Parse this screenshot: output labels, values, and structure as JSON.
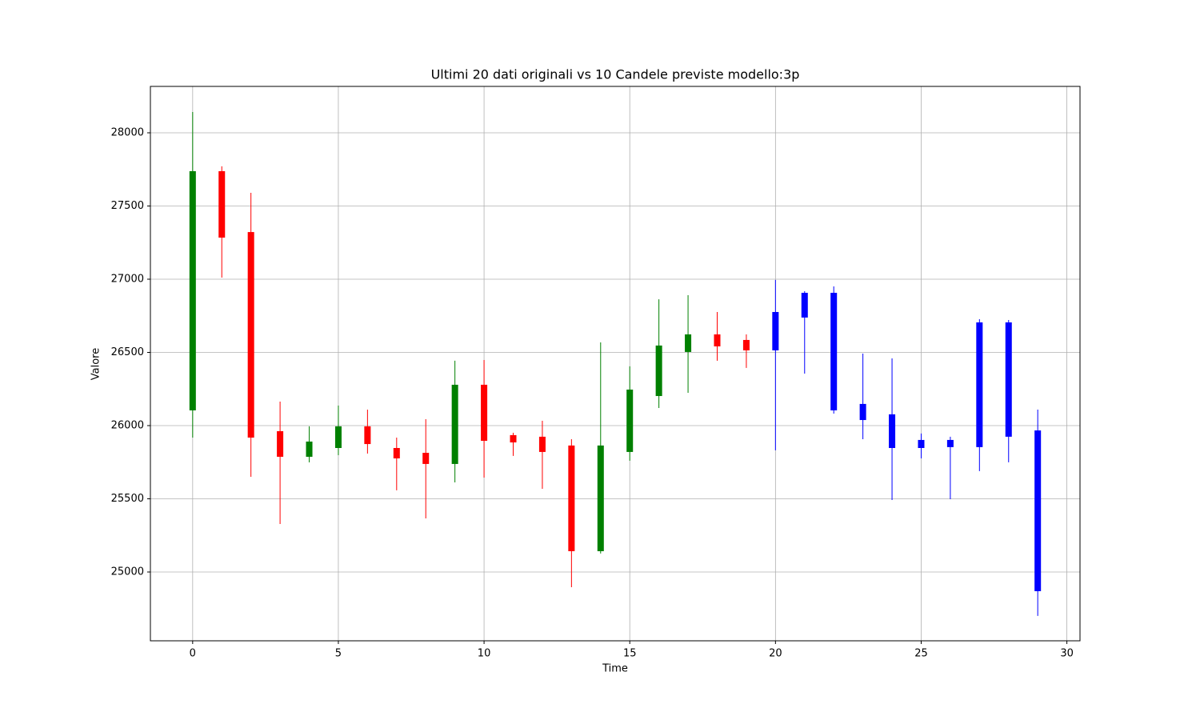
{
  "chart_data": {
    "type": "candlestick",
    "title": "Ultimi 20 dati originali vs 10 Candele previste modello:3p",
    "x_label": "Time",
    "y_label": "Valore",
    "xlim": [
      -1.45,
      30.45
    ],
    "ylim": [
      24530,
      28317
    ],
    "xticks": [
      0,
      5,
      10,
      15,
      20,
      25,
      30
    ],
    "yticks": [
      25000,
      25500,
      26000,
      26500,
      27000,
      27500,
      28000
    ],
    "grid": true,
    "original": {
      "up_color": "green",
      "down_color": "red",
      "x": [
        0,
        1,
        2,
        3,
        4,
        5,
        6,
        7,
        8,
        9,
        10,
        11,
        12,
        13,
        14,
        15,
        16,
        17,
        18,
        19
      ],
      "open": [
        26104,
        27738,
        27322,
        25962,
        25787,
        25847,
        25995,
        25847,
        25814,
        25738,
        26279,
        25935,
        25924,
        25864,
        25142,
        25820,
        26202,
        26503,
        26623,
        26585
      ],
      "high": [
        28142,
        27771,
        27590,
        26164,
        25995,
        26137,
        26109,
        25918,
        26044,
        26443,
        26448,
        25951,
        26033,
        25907,
        26568,
        26405,
        26863,
        26891,
        26776,
        26623
      ],
      "low": [
        25918,
        27011,
        25650,
        25328,
        25749,
        25798,
        25809,
        25558,
        25366,
        25612,
        25645,
        25793,
        25568,
        24896,
        25126,
        25760,
        26120,
        26224,
        26443,
        26394
      ],
      "close": [
        27738,
        27284,
        25918,
        25787,
        25891,
        25995,
        25874,
        25776,
        25738,
        26279,
        25896,
        25885,
        25820,
        25142,
        25864,
        26246,
        26547,
        26623,
        26541,
        26514
      ]
    },
    "predicted": {
      "color": "blue",
      "x": [
        20,
        21,
        22,
        23,
        24,
        25,
        26,
        27,
        28,
        29
      ],
      "open": [
        26776,
        26907,
        26907,
        26148,
        26077,
        25902,
        25902,
        26705,
        26705,
        25967
      ],
      "high": [
        26995,
        26918,
        26951,
        26492,
        26459,
        25946,
        25924,
        26727,
        26721,
        26109
      ],
      "low": [
        25831,
        26355,
        26082,
        25907,
        25492,
        25776,
        25497,
        25689,
        25749,
        24700
      ],
      "close": [
        26514,
        26738,
        26104,
        26038,
        25847,
        25847,
        25853,
        25853,
        25924,
        24869
      ]
    }
  }
}
